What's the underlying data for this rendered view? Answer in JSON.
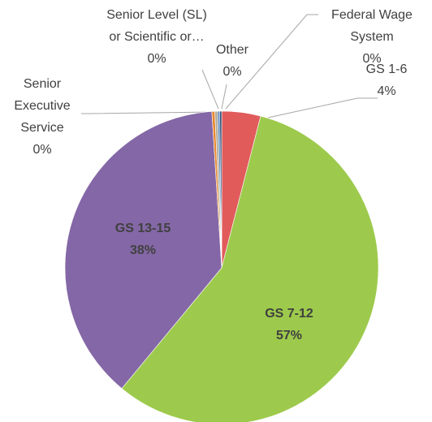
{
  "chart_data": {
    "type": "pie",
    "categories": [
      "GS 1-6",
      "GS 7-12",
      "GS 13-15",
      "Senior Executive Service",
      "Senior Level (SL) or Scientific or…",
      "Other",
      "Federal Wage System"
    ],
    "values": [
      4,
      57,
      38,
      0.3,
      0.3,
      0.2,
      0.2
    ],
    "value_labels": [
      "4%",
      "57%",
      "38%",
      "0%",
      "0%",
      "0%",
      "0%"
    ],
    "colors": [
      "#e15b5b",
      "#9dca4c",
      "#8467a6",
      "#e8882e",
      "#b6b0a0",
      "#4f81bd",
      "#2c4d75"
    ]
  }
}
